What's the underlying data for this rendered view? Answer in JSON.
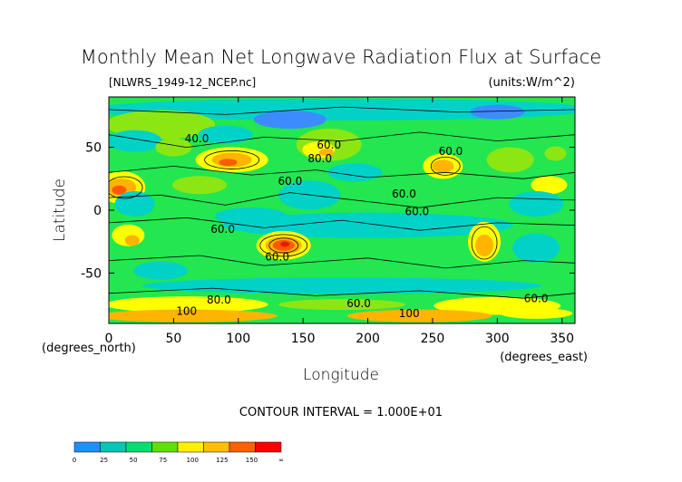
{
  "chart_data": {
    "type": "heatmap",
    "title": "Monthly Mean Net Longwave Radiation Flux at Surface",
    "file_label": "[NLWRS_1949-12_NCEP.nc]",
    "units_label": "(units:W/m^2)",
    "xlabel": "Longitude",
    "ylabel": "Latitude",
    "x_unit_label": "(degrees_east)",
    "y_unit_label": "(degrees_north)",
    "contour_interval_text": "CONTOUR INTERVAL = 1.000E+01",
    "xlim": [
      0,
      360
    ],
    "ylim": [
      -90,
      90
    ],
    "x_ticks": [
      "0",
      "50",
      "100",
      "150",
      "200",
      "250",
      "300",
      "350"
    ],
    "x_tick_values": [
      0,
      50,
      100,
      150,
      200,
      250,
      300,
      350
    ],
    "y_ticks": [
      "50",
      "0",
      "-50"
    ],
    "y_tick_values": [
      50,
      0,
      -50
    ],
    "contour_labels": [
      {
        "text": "40.0",
        "lon": 68,
        "lat": 54
      },
      {
        "text": "80.0",
        "lon": 163,
        "lat": 38
      },
      {
        "text": "60.0",
        "lon": 170,
        "lat": 49
      },
      {
        "text": "60.0",
        "lon": 140,
        "lat": 20
      },
      {
        "text": "60.0",
        "lon": 88,
        "lat": -18
      },
      {
        "text": "60.0",
        "lon": 130,
        "lat": -40
      },
      {
        "text": "60.0",
        "lon": 228,
        "lat": 10
      },
      {
        "text": "60.0",
        "lon": 238,
        "lat": -4
      },
      {
        "text": "60.0",
        "lon": 264,
        "lat": 44
      },
      {
        "text": "60.0",
        "lon": 330,
        "lat": -73
      },
      {
        "text": "60.0",
        "lon": 193,
        "lat": -77
      },
      {
        "text": "80.0",
        "lon": 85,
        "lat": -74
      },
      {
        "text": "100",
        "lon": 60,
        "lat": -83
      },
      {
        "text": "100",
        "lon": 232,
        "lat": -85
      }
    ],
    "colorbar": {
      "levels": [
        "0",
        "25",
        "50",
        "75",
        "100",
        "125",
        "150",
        "∞"
      ],
      "colors": [
        "#1e90ff",
        "#00c8b4",
        "#00e070",
        "#60e000",
        "#fff000",
        "#ffc000",
        "#ff6000",
        "#ff0000"
      ]
    },
    "field_colors": {
      "blue": "#3c8cff",
      "cyan": "#00d2c8",
      "green": "#23e650",
      "lime": "#8ce614",
      "yellow": "#ffff00",
      "orange": "#ffb400",
      "redorange": "#ff5a00",
      "red": "#e61e00"
    }
  }
}
